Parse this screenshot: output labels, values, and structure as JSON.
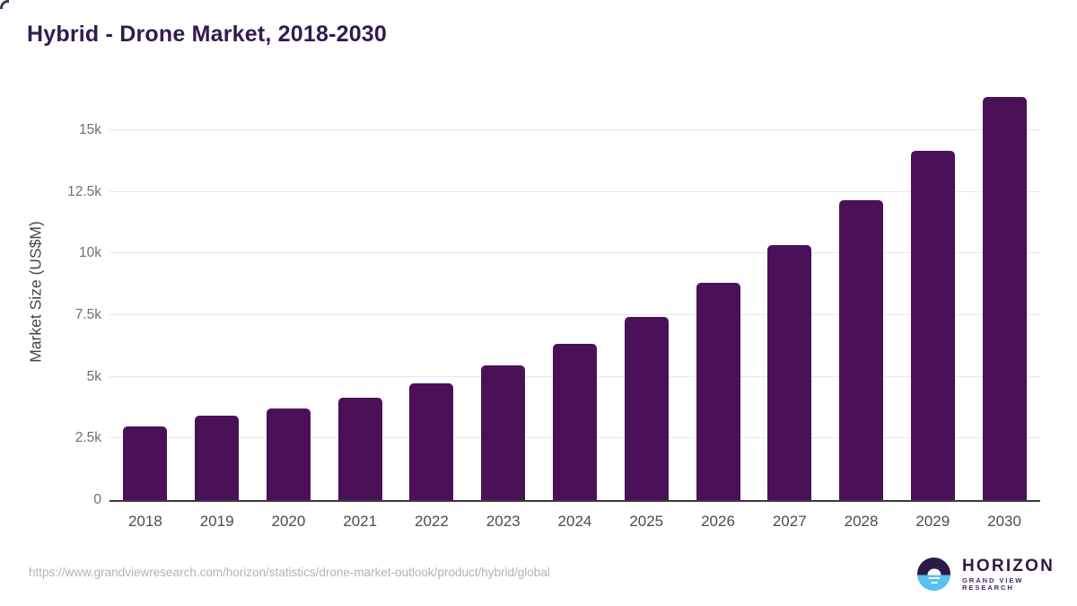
{
  "title": "Hybrid - Drone Market, 2018-2030",
  "source_url": "https://www.grandviewresearch.com/horizon/statistics/drone-market-outlook/product/hybrid/global",
  "logo": {
    "name": "HORIZON",
    "subtitle": "GRAND VIEW RESEARCH",
    "icon": "horizon-sunrise-circle-icon"
  },
  "colors": {
    "bar": "#4a1158",
    "title_text": "#311b4f",
    "gridline": "#e8e8e8",
    "axis_line": "#3a3a3a",
    "y_tick_text": "#6f6f6f",
    "x_tick_text": "#4c4c4c",
    "url_text": "#b3b3b3",
    "logo_purple": "#2e1a47",
    "logo_blue": "#58c1ee"
  },
  "chart_data": {
    "type": "bar",
    "title": "Hybrid - Drone Market, 2018-2030",
    "xlabel": "",
    "ylabel": "Market Size (US$M)",
    "categories": [
      "2018",
      "2019",
      "2020",
      "2021",
      "2022",
      "2023",
      "2024",
      "2025",
      "2026",
      "2027",
      "2028",
      "2029",
      "2030"
    ],
    "values": [
      2970,
      3430,
      3710,
      4160,
      4720,
      5450,
      6350,
      7420,
      8790,
      10340,
      12150,
      14150,
      16350
    ],
    "ylim": [
      0,
      16500
    ],
    "yticks": [
      {
        "value": 0,
        "label": "0"
      },
      {
        "value": 2500,
        "label": "2.5k"
      },
      {
        "value": 5000,
        "label": "5k"
      },
      {
        "value": 7500,
        "label": "7.5k"
      },
      {
        "value": 10000,
        "label": "10k"
      },
      {
        "value": 12500,
        "label": "12.5k"
      },
      {
        "value": 15000,
        "label": "15k"
      }
    ],
    "grid": "horizontal",
    "legend": false,
    "bar_color": "#4a1158"
  }
}
